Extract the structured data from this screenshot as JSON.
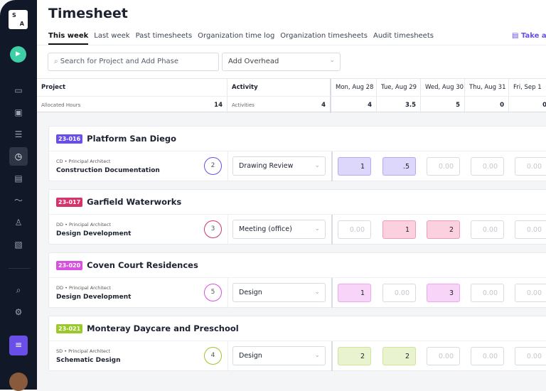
{
  "sidebar": {
    "logo": [
      "S",
      "A"
    ],
    "items": [
      "monitor-icon",
      "board-icon",
      "gantt-icon",
      "clock-icon",
      "report-icon",
      "chart-icon",
      "user-icon",
      "money-icon",
      "search-icon",
      "gear-icon",
      "list-icon"
    ]
  },
  "header": {
    "title": "Timesheet",
    "tour_label": "Take a",
    "tabs": [
      "This week",
      "Last week",
      "Past timesheets",
      "Organization time log",
      "Organization timesheets",
      "Audit timesheets"
    ]
  },
  "toolbar": {
    "search_placeholder": "Search for Project and Add Phase",
    "overhead_label": "Add Overhead"
  },
  "table": {
    "project_header": "Project",
    "activity_header": "Activity",
    "allocated_label": "Allocated Hours",
    "allocated_value": "14",
    "activities_label": "Activities",
    "activities_value": "4",
    "days": [
      {
        "label": "Mon, Aug 28",
        "total": "4"
      },
      {
        "label": "Tue, Aug 29",
        "total": "3.5"
      },
      {
        "label": "Wed, Aug 30",
        "total": "5"
      },
      {
        "label": "Thu, Aug 31",
        "total": "0"
      },
      {
        "label": "Fri, Sep 1",
        "total": "0"
      }
    ]
  },
  "placeholder": "0.00",
  "projects": [
    {
      "code": "23-016",
      "name": "Platform San Diego",
      "color": "#6a4ee8",
      "fill": "#dcd7fb",
      "phase_meta": "CD • Principal Architect",
      "phase": "Construction Documentation",
      "count": "2",
      "activity": "Drawing Review",
      "hours": [
        "1",
        ".5",
        "",
        "",
        ""
      ]
    },
    {
      "code": "23-017",
      "name": "Garfield Waterworks",
      "color": "#d6336c",
      "fill": "#fbd0df",
      "phase_meta": "DD • Principal Architect",
      "phase": "Design Development",
      "count": "3",
      "activity": "Meeting (office)",
      "hours": [
        "",
        "1",
        "2",
        "",
        ""
      ]
    },
    {
      "code": "23-020",
      "name": "Coven Court Residences",
      "color": "#d94fe0",
      "fill": "#f8d4f9",
      "phase_meta": "DD • Principal Architect",
      "phase": "Design Development",
      "count": "5",
      "activity": "Design",
      "hours": [
        "1",
        "",
        "3",
        "",
        ""
      ]
    },
    {
      "code": "23-021",
      "name": "Monteray Daycare and Preschool",
      "color": "#9bc92a",
      "fill": "#e9f3cf",
      "phase_meta": "SD • Principal Architect",
      "phase": "Schematic Design",
      "count": "4",
      "activity": "Design",
      "hours": [
        "2",
        "2",
        "",
        "",
        ""
      ]
    }
  ]
}
